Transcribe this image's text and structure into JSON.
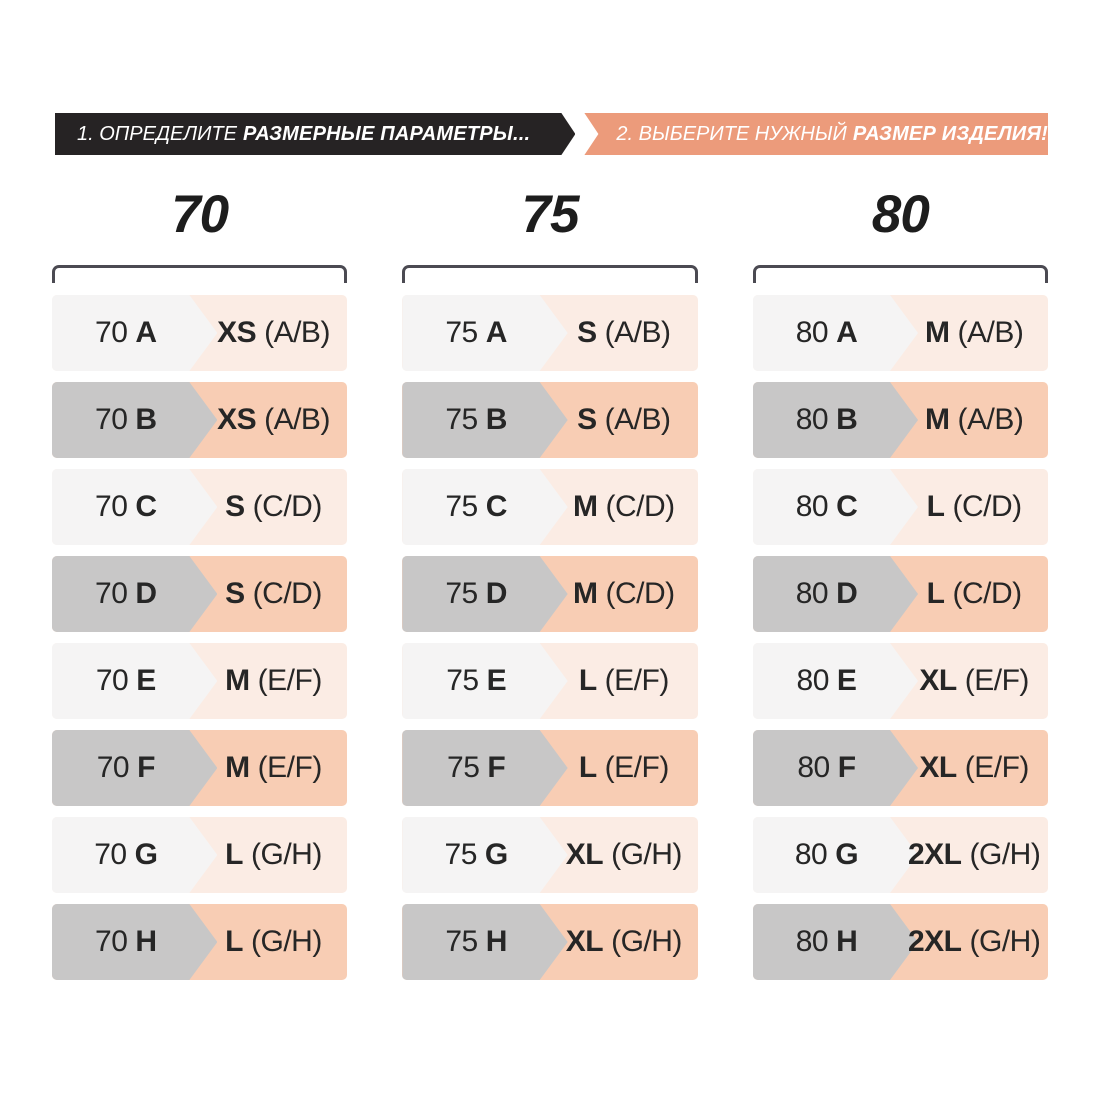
{
  "banners": [
    {
      "prefix": "1. ОПРЕДЕЛИТЕ",
      "emphasis": "РАЗМЕРНЫЕ ПАРАМЕТРЫ..."
    },
    {
      "prefix": "2. ВЫБЕРИТЕ НУЖНЫЙ",
      "emphasis": "РАЗМЕР ИЗДЕЛИЯ!"
    }
  ],
  "colors": {
    "banner_dark": "#262324",
    "banner_accent": "#EC9B7B",
    "row_gray_light": "#F5F4F4",
    "row_gray_dark": "#C8C7C7",
    "row_peach_light": "#FBECE4",
    "row_peach_dark": "#F8CDB4",
    "bracket": "#4B4A52",
    "text": "#262626"
  },
  "columns": [
    {
      "header": "70",
      "rows": [
        {
          "band": "70",
          "cup": "A",
          "size": "XS",
          "cup_range": "(A/B)",
          "shaded": false
        },
        {
          "band": "70",
          "cup": "B",
          "size": "XS",
          "cup_range": "(A/B)",
          "shaded": true
        },
        {
          "band": "70",
          "cup": "C",
          "size": "S",
          "cup_range": "(C/D)",
          "shaded": false
        },
        {
          "band": "70",
          "cup": "D",
          "size": "S",
          "cup_range": "(C/D)",
          "shaded": true
        },
        {
          "band": "70",
          "cup": "E",
          "size": "M",
          "cup_range": "(E/F)",
          "shaded": false
        },
        {
          "band": "70",
          "cup": "F",
          "size": "M",
          "cup_range": "(E/F)",
          "shaded": true
        },
        {
          "band": "70",
          "cup": "G",
          "size": "L",
          "cup_range": "(G/H)",
          "shaded": false
        },
        {
          "band": "70",
          "cup": "H",
          "size": "L",
          "cup_range": "(G/H)",
          "shaded": true
        }
      ]
    },
    {
      "header": "75",
      "rows": [
        {
          "band": "75",
          "cup": "A",
          "size": "S",
          "cup_range": "(A/B)",
          "shaded": false
        },
        {
          "band": "75",
          "cup": "B",
          "size": "S",
          "cup_range": "(A/B)",
          "shaded": true
        },
        {
          "band": "75",
          "cup": "C",
          "size": "M",
          "cup_range": "(C/D)",
          "shaded": false
        },
        {
          "band": "75",
          "cup": "D",
          "size": "M",
          "cup_range": "(C/D)",
          "shaded": true
        },
        {
          "band": "75",
          "cup": "E",
          "size": "L",
          "cup_range": "(E/F)",
          "shaded": false
        },
        {
          "band": "75",
          "cup": "F",
          "size": "L",
          "cup_range": "(E/F)",
          "shaded": true
        },
        {
          "band": "75",
          "cup": "G",
          "size": "XL",
          "cup_range": "(G/H)",
          "shaded": false
        },
        {
          "band": "75",
          "cup": "H",
          "size": "XL",
          "cup_range": "(G/H)",
          "shaded": true
        }
      ]
    },
    {
      "header": "80",
      "rows": [
        {
          "band": "80",
          "cup": "A",
          "size": "M",
          "cup_range": "(A/B)",
          "shaded": false
        },
        {
          "band": "80",
          "cup": "B",
          "size": "M",
          "cup_range": "(A/B)",
          "shaded": true
        },
        {
          "band": "80",
          "cup": "C",
          "size": "L",
          "cup_range": "(C/D)",
          "shaded": false
        },
        {
          "band": "80",
          "cup": "D",
          "size": "L",
          "cup_range": "(C/D)",
          "shaded": true
        },
        {
          "band": "80",
          "cup": "E",
          "size": "XL",
          "cup_range": "(E/F)",
          "shaded": false
        },
        {
          "band": "80",
          "cup": "F",
          "size": "XL",
          "cup_range": "(E/F)",
          "shaded": true
        },
        {
          "band": "80",
          "cup": "G",
          "size": "2XL",
          "cup_range": "(G/H)",
          "shaded": false
        },
        {
          "band": "80",
          "cup": "H",
          "size": "2XL",
          "cup_range": "(G/H)",
          "shaded": true
        }
      ]
    }
  ]
}
